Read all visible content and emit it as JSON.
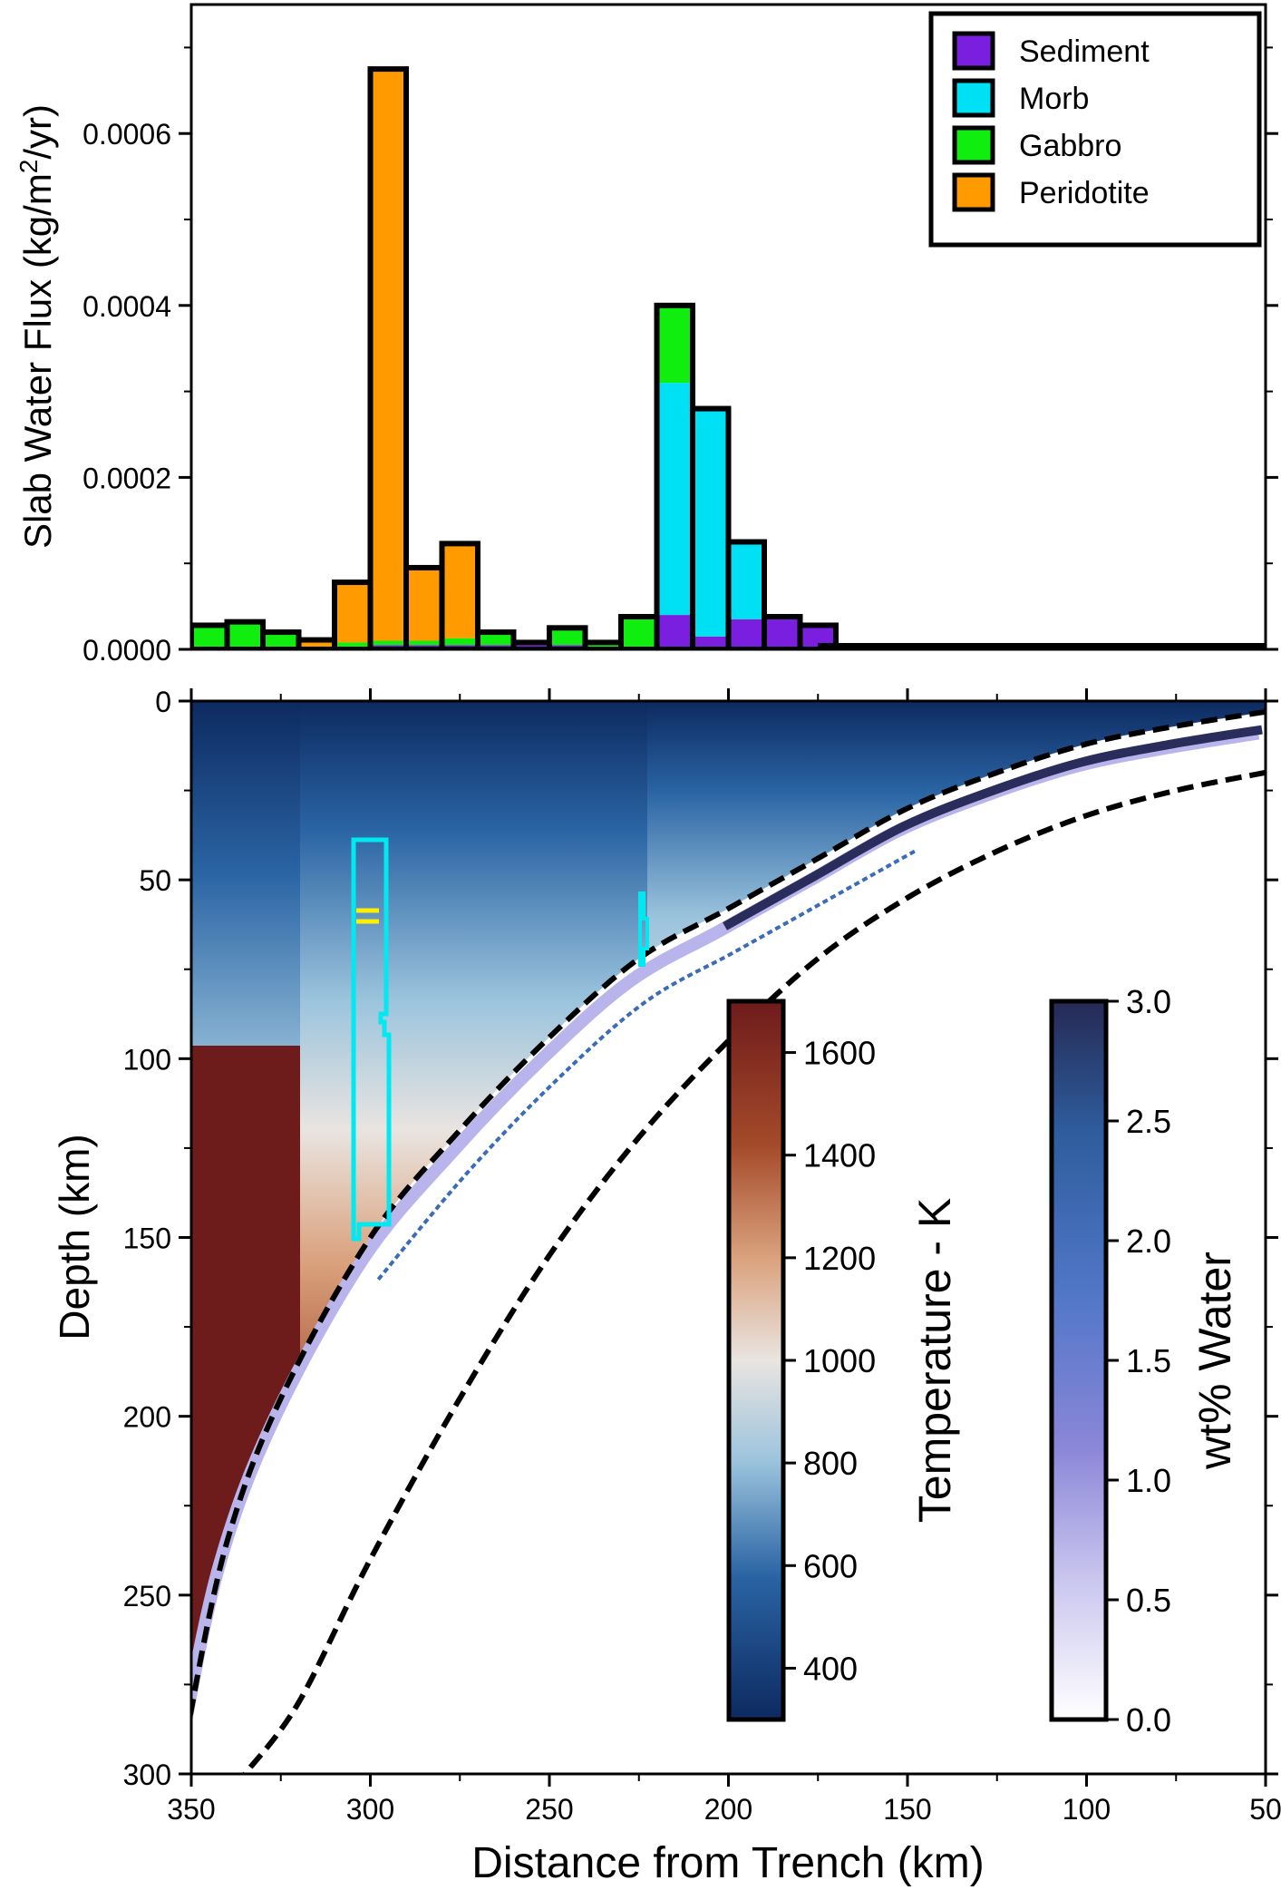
{
  "chart_data": [
    {
      "type": "bar",
      "stacked": true,
      "ylabel_main": "Slab Water Flux (kg/m",
      "ylabel_sup": "2",
      "ylabel_tail": "/yr)",
      "xlim": [
        350,
        50
      ],
      "ylim": [
        0,
        0.00075
      ],
      "y_ticks": [
        "0.0000",
        "0.0002",
        "0.0004",
        "0.0006"
      ],
      "y_tick_values": [
        0,
        0.0002,
        0.0004,
        0.0006
      ],
      "bin_width_km": 10,
      "legend_position": "top-right",
      "series": [
        {
          "name": "Sediment",
          "color": "#7a1fe0"
        },
        {
          "name": "Morb",
          "color": "#00e0f5"
        },
        {
          "name": "Gabbro",
          "color": "#10ee10"
        },
        {
          "name": "Peridotite",
          "color": "#ff9a00"
        }
      ],
      "bins": [
        {
          "x": 345,
          "values": [
            0,
            0,
            2.8e-05,
            0
          ]
        },
        {
          "x": 335,
          "values": [
            0,
            0,
            3.2e-05,
            0
          ]
        },
        {
          "x": 325,
          "values": [
            0,
            0,
            2e-05,
            0
          ]
        },
        {
          "x": 315,
          "values": [
            0,
            0,
            3e-06,
            8e-06
          ]
        },
        {
          "x": 305,
          "values": [
            3e-06,
            0,
            5e-06,
            7e-05
          ]
        },
        {
          "x": 295,
          "values": [
            5e-06,
            0,
            5e-06,
            0.000665
          ]
        },
        {
          "x": 285,
          "values": [
            5e-06,
            0,
            5e-06,
            8.5e-05
          ]
        },
        {
          "x": 275,
          "values": [
            5e-06,
            0,
            8e-06,
            0.00011
          ]
        },
        {
          "x": 265,
          "values": [
            5e-06,
            0,
            1.5e-05,
            0
          ]
        },
        {
          "x": 255,
          "values": [
            5e-06,
            0,
            3e-06,
            0
          ]
        },
        {
          "x": 245,
          "values": [
            5e-06,
            0,
            2e-05,
            0
          ]
        },
        {
          "x": 235,
          "values": [
            3e-06,
            0,
            5e-06,
            0
          ]
        },
        {
          "x": 225,
          "values": [
            3e-06,
            0,
            3.5e-05,
            0
          ]
        },
        {
          "x": 215,
          "values": [
            4e-05,
            0.00027,
            9e-05,
            0
          ]
        },
        {
          "x": 205,
          "values": [
            1.5e-05,
            0.000265,
            0,
            0
          ]
        },
        {
          "x": 195,
          "values": [
            3.5e-05,
            9e-05,
            0,
            0
          ]
        },
        {
          "x": 185,
          "values": [
            3.8e-05,
            0,
            0,
            0
          ]
        },
        {
          "x": 175,
          "values": [
            2.8e-05,
            0,
            0,
            0
          ]
        }
      ]
    },
    {
      "type": "heatmap",
      "xlabel": "Distance from Trench (km)",
      "ylabel": "Depth (km)",
      "xlim": [
        350,
        50
      ],
      "ylim": [
        300,
        0
      ],
      "x_ticks": [
        "350",
        "300",
        "250",
        "200",
        "150",
        "100",
        "50"
      ],
      "x_tick_values": [
        350,
        300,
        250,
        200,
        150,
        100,
        50
      ],
      "y_ticks": [
        "0",
        "50",
        "100",
        "150",
        "200",
        "250",
        "300"
      ],
      "y_tick_values": [
        0,
        50,
        100,
        150,
        200,
        250,
        300
      ],
      "slab_surface_km": [
        [
          50,
          3
        ],
        [
          75,
          7
        ],
        [
          100,
          12
        ],
        [
          125,
          20
        ],
        [
          150,
          30
        ],
        [
          175,
          44
        ],
        [
          200,
          58
        ],
        [
          225,
          72
        ],
        [
          250,
          94
        ],
        [
          275,
          120
        ],
        [
          300,
          150
        ],
        [
          325,
          195
        ],
        [
          340,
          235
        ],
        [
          350,
          282
        ],
        [
          352,
          300
        ]
      ],
      "slab_base_km": [
        [
          50,
          20
        ],
        [
          75,
          25
        ],
        [
          100,
          32
        ],
        [
          125,
          42
        ],
        [
          150,
          55
        ],
        [
          175,
          72
        ],
        [
          200,
          95
        ],
        [
          225,
          122
        ],
        [
          250,
          155
        ],
        [
          275,
          195
        ],
        [
          300,
          240
        ],
        [
          320,
          280
        ],
        [
          335,
          300
        ]
      ],
      "colorbars": [
        {
          "label": "Temperature - K",
          "range": [
            300,
            1700
          ],
          "tick_labels": [
            "400",
            "600",
            "800",
            "1000",
            "1200",
            "1400",
            "1600"
          ],
          "tick_values": [
            400,
            600,
            800,
            1000,
            1200,
            1400,
            1600
          ],
          "colors": [
            "#0d2a60",
            "#2a64a4",
            "#9cc4dd",
            "#e9e4e0",
            "#dba37f",
            "#a44a2a",
            "#6e1b1c"
          ]
        },
        {
          "label": "wt% Water",
          "range": [
            0,
            3
          ],
          "tick_labels": [
            "0.0",
            "0.5",
            "1.0",
            "1.5",
            "2.0",
            "2.5",
            "3.0"
          ],
          "tick_values": [
            0,
            0.5,
            1,
            1.5,
            2,
            2.5,
            3
          ],
          "colors": [
            "#ffffff",
            "#c8c4ee",
            "#8a86d8",
            "#4f76c6",
            "#2e5c9c",
            "#252a55"
          ]
        }
      ]
    }
  ]
}
